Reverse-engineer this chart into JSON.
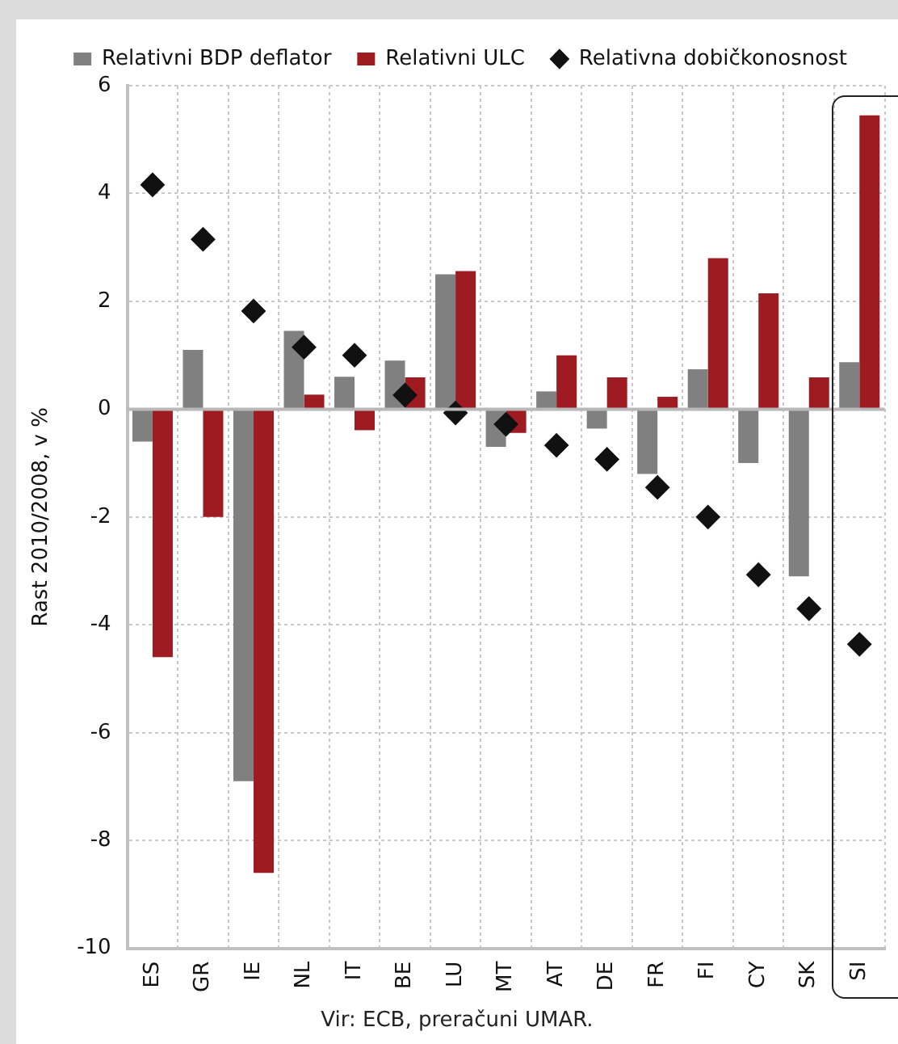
{
  "chart_data": {
    "type": "bar",
    "categories": [
      "ES",
      "GR",
      "IE",
      "NL",
      "IT",
      "BE",
      "LU",
      "MT",
      "AT",
      "DE",
      "FR",
      "FI",
      "CY",
      "SK",
      "SI"
    ],
    "series": [
      {
        "name": "Relativni BDP deflator",
        "color": "#808080",
        "values": [
          -0.6,
          1.1,
          -6.9,
          1.45,
          0.6,
          0.9,
          2.5,
          -0.7,
          0.33,
          -0.36,
          -1.2,
          0.74,
          -1.0,
          -3.1,
          0.87
        ]
      },
      {
        "name": "Relativni ULC",
        "color": "#9e1b22",
        "values": [
          -4.6,
          -2.0,
          -8.6,
          0.27,
          -0.39,
          0.59,
          2.56,
          -0.44,
          1.0,
          0.59,
          0.23,
          2.8,
          2.15,
          0.59,
          5.45
        ]
      },
      {
        "name": "Relativna dobičkonosnost",
        "type": "scatter",
        "color": "#111111",
        "values": [
          4.16,
          3.15,
          1.82,
          1.15,
          1.0,
          0.26,
          -0.07,
          -0.28,
          -0.67,
          -0.93,
          -1.45,
          -2.0,
          -3.07,
          -3.7,
          -4.36
        ]
      }
    ],
    "ylabel": "Rast 2010/2008, v %",
    "ylim": [
      -10,
      6
    ],
    "yticks": [
      -10,
      -8,
      -6,
      -4,
      -2,
      0,
      2,
      4,
      6
    ],
    "grid": true,
    "legend": "top",
    "marker": "diamond",
    "annotations": [
      "Vir: ECB, preračuni UMAR."
    ]
  }
}
